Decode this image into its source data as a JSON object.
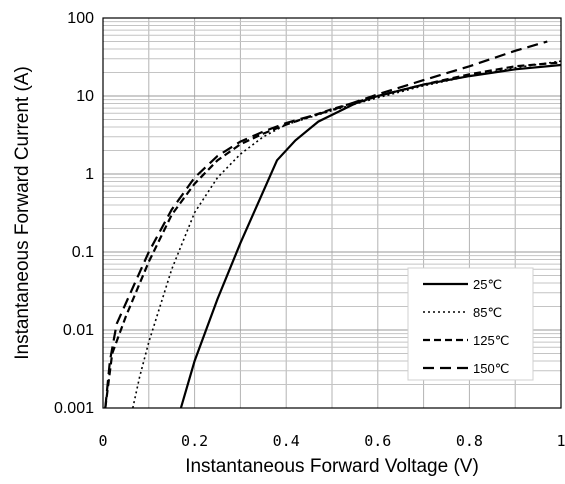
{
  "chart_data": {
    "type": "line",
    "xlabel": "Instantaneous Forward Voltage (V)",
    "ylabel": "Instantaneous Forward Current (A)",
    "xlim": [
      0,
      1
    ],
    "ylim": [
      0.001,
      100
    ],
    "yscale": "log",
    "grid": true,
    "legend_position": "bottom-right",
    "x_ticks": [
      "0",
      "0.2",
      "0.4",
      "0.6",
      "0.8",
      "1"
    ],
    "y_ticks": [
      "0.001",
      "0.01",
      "0.1",
      "1",
      "10",
      "100"
    ],
    "series": [
      {
        "name": "25℃",
        "dash": "solid",
        "x": [
          0.17,
          0.2,
          0.25,
          0.3,
          0.35,
          0.38,
          0.42,
          0.47,
          0.55,
          0.6,
          0.7,
          0.8,
          0.9,
          1.0
        ],
        "y": [
          0.001,
          0.004,
          0.025,
          0.13,
          0.6,
          1.5,
          2.7,
          4.7,
          8.0,
          10,
          14,
          18,
          22,
          25
        ]
      },
      {
        "name": "85℃",
        "dash": "dotted",
        "x": [
          0.065,
          0.08,
          0.1,
          0.15,
          0.2,
          0.25,
          0.3,
          0.35,
          0.4,
          0.5,
          0.6,
          0.7,
          0.8,
          0.9,
          1.0
        ],
        "y": [
          0.001,
          0.0025,
          0.007,
          0.06,
          0.32,
          0.9,
          1.8,
          3.0,
          4.3,
          6.5,
          9.5,
          13.5,
          18,
          23,
          28
        ]
      },
      {
        "name": "125℃",
        "dash": "short-dash",
        "x": [
          0.005,
          0.02,
          0.05,
          0.1,
          0.15,
          0.2,
          0.25,
          0.3,
          0.35,
          0.4,
          0.5,
          0.6,
          0.7,
          0.8,
          0.9,
          1.0
        ],
        "y": [
          0.001,
          0.005,
          0.015,
          0.075,
          0.3,
          0.75,
          1.5,
          2.4,
          3.3,
          4.3,
          6.8,
          10,
          14,
          19,
          24,
          27
        ]
      },
      {
        "name": "150℃",
        "dash": "long-dash",
        "x": [
          0.005,
          0.015,
          0.03,
          0.06,
          0.1,
          0.15,
          0.2,
          0.25,
          0.3,
          0.35,
          0.4,
          0.5,
          0.6,
          0.7,
          0.8,
          0.9,
          0.97
        ],
        "y": [
          0.001,
          0.004,
          0.012,
          0.03,
          0.1,
          0.35,
          0.9,
          1.7,
          2.6,
          3.5,
          4.5,
          6.6,
          10.5,
          16,
          24,
          38,
          50
        ]
      }
    ]
  }
}
